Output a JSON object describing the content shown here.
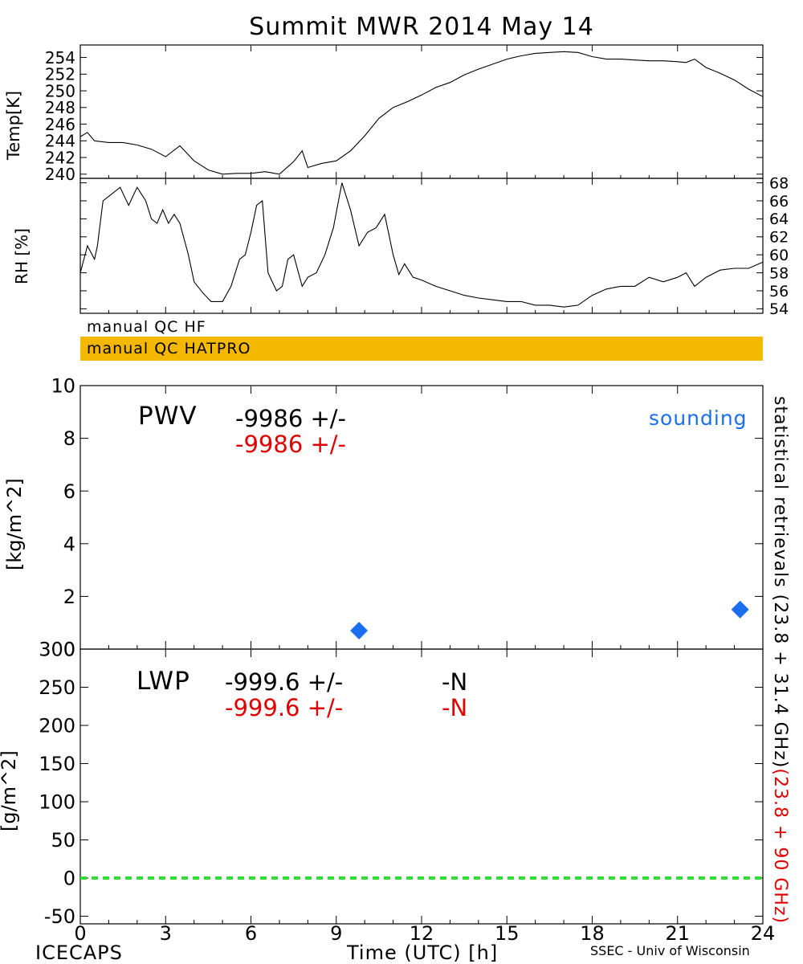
{
  "title": "Summit MWR 2014 May 14",
  "footer": {
    "left": "ICECAPS",
    "right": "SSEC - Univ of Wisconsin"
  },
  "qc": {
    "hf_label": "manual QC HF",
    "hatpro_label": "manual QC HATPRO",
    "hatpro_color": "#f5b800"
  },
  "xaxis": {
    "label": "Time (UTC) [h]",
    "ticks": [
      0,
      3,
      6,
      9,
      12,
      15,
      18,
      21,
      24
    ],
    "range": [
      0,
      24
    ]
  },
  "right_label": {
    "black": "statistical retrievals (23.8 + 31.4 GHz)",
    "red": "(23.8 + 90 GHz)"
  },
  "pwv": {
    "name": "PWV",
    "value1": "-9986 +/-",
    "value2": "-9986 +/-",
    "sounding_label": "sounding",
    "ylabel": "[kg/m^2]",
    "sounding_color": "#1a6ef0"
  },
  "lwp": {
    "name": "LWP",
    "value1": "-999.6 +/-",
    "value2": "-999.6 +/-",
    "n1": "-N",
    "n2": "-N",
    "ylabel": "[g/m^2]",
    "zero_line_color": "#33dd33"
  },
  "chart_data": [
    {
      "type": "line",
      "title": "Summit MWR 2014 May 14",
      "ylabel": "Temp[K]",
      "xlim": [
        0,
        24
      ],
      "ylim": [
        239.5,
        255.5
      ],
      "yticks": [
        240,
        242,
        244,
        246,
        248,
        250,
        252,
        254
      ],
      "x": [
        0,
        0.25,
        0.5,
        1,
        1.5,
        2,
        2.5,
        3,
        3.5,
        4,
        4.5,
        5,
        5.5,
        6,
        6.5,
        7,
        7.5,
        7.8,
        8,
        8.5,
        9,
        9.5,
        10,
        10.5,
        11,
        11.5,
        12,
        12.5,
        13,
        13.5,
        14,
        14.5,
        15,
        15.5,
        16,
        16.5,
        17,
        17.5,
        18,
        18.5,
        19,
        19.5,
        20,
        20.5,
        21,
        21.3,
        21.6,
        22,
        22.5,
        23,
        23.5,
        24
      ],
      "y": [
        244.5,
        245,
        244,
        243.8,
        243.8,
        243.5,
        243,
        242.1,
        243.4,
        241.6,
        240.5,
        240.0,
        240.1,
        240.1,
        240.3,
        240.0,
        241.5,
        242.8,
        240.8,
        241.3,
        241.6,
        242.8,
        244.6,
        246.7,
        248.0,
        248.7,
        249.5,
        250.4,
        251.0,
        251.9,
        252.6,
        253.2,
        253.8,
        254.2,
        254.5,
        254.6,
        254.7,
        254.6,
        254.1,
        253.8,
        253.8,
        253.7,
        253.6,
        253.6,
        253.5,
        253.4,
        253.8,
        252.8,
        252.1,
        251.3,
        250.2,
        249.3
      ]
    },
    {
      "type": "line",
      "ylabel": "RH [%]",
      "xlim": [
        0,
        24
      ],
      "ylim": [
        53.5,
        68.5
      ],
      "yticks": [
        54,
        56,
        58,
        60,
        62,
        64,
        66,
        68
      ],
      "x": [
        0,
        0.25,
        0.5,
        0.6,
        0.8,
        1,
        1.4,
        1.7,
        2.0,
        2.3,
        2.5,
        2.7,
        2.9,
        3.1,
        3.3,
        3.5,
        3.8,
        4.0,
        4.3,
        4.6,
        5.0,
        5.3,
        5.6,
        5.8,
        6.0,
        6.2,
        6.4,
        6.6,
        6.9,
        7.1,
        7.3,
        7.5,
        7.8,
        8.0,
        8.3,
        8.6,
        8.9,
        9.2,
        9.5,
        9.8,
        10.1,
        10.4,
        10.7,
        11.0,
        11.2,
        11.4,
        11.7,
        12.0,
        12.5,
        13,
        13.5,
        14,
        14.5,
        15,
        15.5,
        16,
        16.5,
        17,
        17.5,
        18,
        18.5,
        19,
        19.5,
        20,
        20.5,
        21,
        21.3,
        21.6,
        22,
        22.5,
        23,
        23.5,
        24
      ],
      "y": [
        58,
        61,
        59.5,
        61,
        66,
        66.5,
        67.5,
        65.5,
        67.5,
        66,
        64,
        63.5,
        65,
        63.5,
        64.5,
        63.5,
        60,
        57,
        55.8,
        54.8,
        54.8,
        56.5,
        59.5,
        60,
        62.5,
        65.5,
        66,
        58,
        56,
        56.5,
        59.5,
        60,
        56.5,
        57.5,
        58,
        60,
        63,
        68,
        65,
        61,
        62.5,
        63,
        64.5,
        60,
        57.8,
        59,
        57.5,
        57.2,
        56.5,
        56,
        55.5,
        55.2,
        55,
        54.8,
        54.8,
        54.4,
        54.4,
        54.2,
        54.4,
        55.5,
        56.2,
        56.5,
        56.5,
        57.5,
        57,
        57.5,
        58,
        56.5,
        57.5,
        58.3,
        58.5,
        58.5,
        59.2
      ]
    },
    {
      "type": "scatter",
      "ylabel": "[kg/m^2]",
      "xlim": [
        0,
        24
      ],
      "ylim": [
        0,
        10
      ],
      "yticks": [
        0,
        2,
        4,
        6,
        8,
        10
      ],
      "series": [
        {
          "name": "sounding",
          "x": [
            9.8,
            23.2
          ],
          "y": [
            0.7,
            1.5
          ],
          "color": "#1a6ef0",
          "marker": "diamond"
        }
      ]
    },
    {
      "type": "line",
      "ylabel": "[g/m^2]",
      "xlim": [
        0,
        24
      ],
      "ylim": [
        -60,
        300
      ],
      "yticks": [
        -50,
        0,
        50,
        100,
        150,
        200,
        250,
        300
      ],
      "series": [
        {
          "x": [
            0,
            24
          ],
          "y": [
            0,
            0
          ],
          "color": "#33dd33",
          "style": "dashed"
        }
      ]
    }
  ]
}
